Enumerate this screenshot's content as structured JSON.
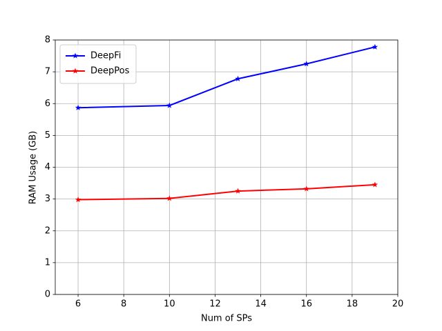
{
  "chart_data": {
    "type": "line",
    "xlabel": "Num of SPs",
    "ylabel": "RAM Usage (GB)",
    "x": [
      6,
      10,
      13,
      16,
      19
    ],
    "series": [
      {
        "name": "DeepFi",
        "color": "#0000ff",
        "values": [
          5.87,
          5.94,
          6.78,
          7.25,
          7.78
        ]
      },
      {
        "name": "DeepPos",
        "color": "#ff0000",
        "values": [
          2.98,
          3.02,
          3.25,
          3.32,
          3.45
        ]
      }
    ],
    "xlim": [
      5,
      20
    ],
    "xticks": [
      6,
      8,
      10,
      12,
      14,
      16,
      18,
      20
    ],
    "ylim": [
      0,
      8
    ],
    "yticks": [
      0,
      1,
      2,
      3,
      4,
      5,
      6,
      7,
      8
    ],
    "grid": true,
    "legend": "upper-left",
    "marker": "star"
  }
}
